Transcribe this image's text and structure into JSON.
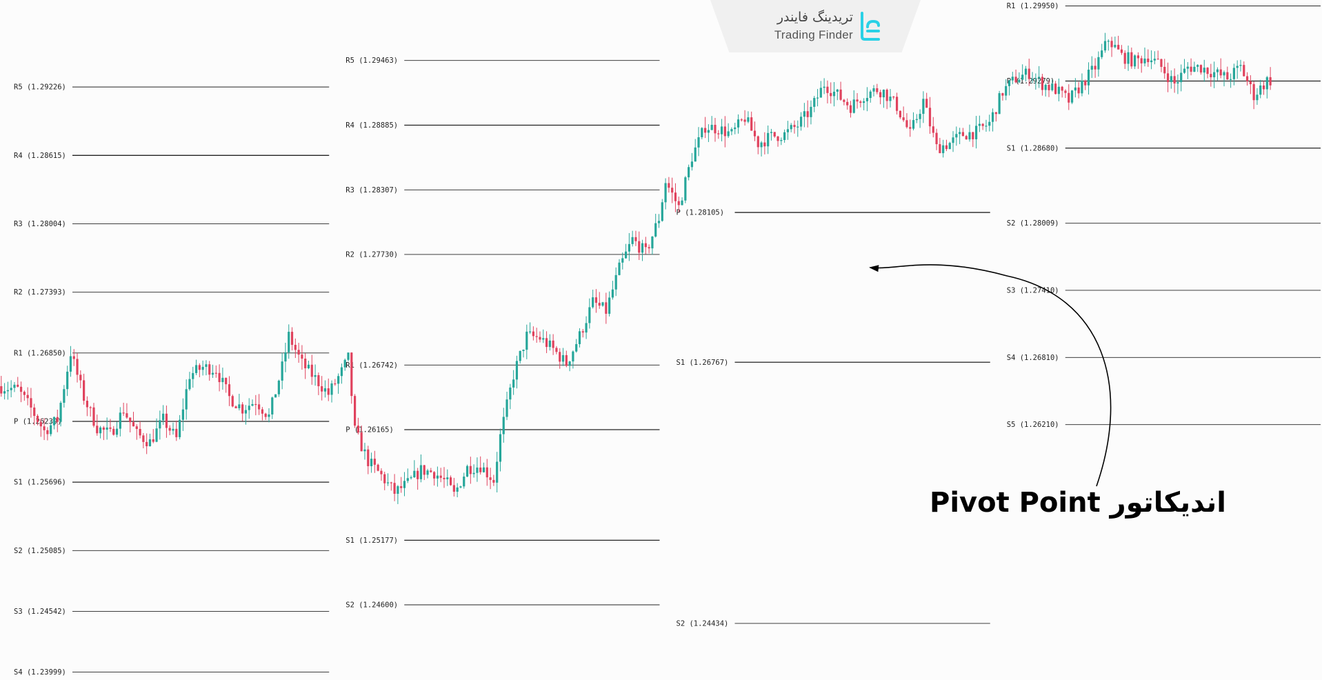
{
  "brand": {
    "name_fa": "تریدینگ فایندر",
    "name_en": "Trading Finder"
  },
  "annotation": {
    "text": "اندیکاتور Pivot Point"
  },
  "colors": {
    "bull": "#26a69a",
    "bear": "#e0425d",
    "level_line": "#222222",
    "arrow": "#000000"
  },
  "chart_data": {
    "type": "candlestick",
    "panes": [
      {
        "x_range": [
          0,
          100
        ],
        "levels": [
          {
            "name": "R5",
            "value": 1.29226,
            "label": "R5 (1.29226)"
          },
          {
            "name": "R4",
            "value": 1.28615,
            "label": "R4 (1.28615)"
          },
          {
            "name": "R3",
            "value": 1.28004,
            "label": "R3 (1.28004)"
          },
          {
            "name": "R2",
            "value": 1.27393,
            "label": "R2 (1.27393)"
          },
          {
            "name": "R1",
            "value": 1.2685,
            "label": "R1 (1.26850)"
          },
          {
            "name": "P",
            "value": 1.26239,
            "label": "P (1.26239)"
          },
          {
            "name": "S1",
            "value": 1.25696,
            "label": "S1 (1.25696)"
          },
          {
            "name": "S2",
            "value": 1.25085,
            "label": "S2 (1.25085)"
          },
          {
            "name": "S3",
            "value": 1.24542,
            "label": "S3 (1.24542)"
          },
          {
            "name": "S4",
            "value": 1.23999,
            "label": "S4 (1.23999)"
          }
        ]
      },
      {
        "x_range": [
          100,
          200
        ],
        "levels": [
          {
            "name": "R5",
            "value": 1.29463,
            "label": "R5 (1.29463)"
          },
          {
            "name": "R4",
            "value": 1.28885,
            "label": "R4 (1.28885)"
          },
          {
            "name": "R3",
            "value": 1.28307,
            "label": "R3 (1.28307)"
          },
          {
            "name": "R2",
            "value": 1.2773,
            "label": "R2 (1.27730)"
          },
          {
            "name": "R1",
            "value": 1.26742,
            "label": "R1 (1.26742)"
          },
          {
            "name": "P",
            "value": 1.26165,
            "label": "P (1.26165)"
          },
          {
            "name": "S1",
            "value": 1.25177,
            "label": "S1 (1.25177)"
          },
          {
            "name": "S2",
            "value": 1.246,
            "label": "S2 (1.24600)"
          }
        ]
      },
      {
        "x_range": [
          200,
          300
        ],
        "levels": [
          {
            "name": "P",
            "value": 1.28105,
            "label": "P (1.28105)"
          },
          {
            "name": "S1",
            "value": 1.26767,
            "label": "S1 (1.26767)"
          },
          {
            "name": "S2",
            "value": 1.24434,
            "label": "S2 (1.24434)"
          }
        ]
      },
      {
        "x_range": [
          300,
          400
        ],
        "levels": [
          {
            "name": "R1",
            "value": 1.2995,
            "label": "R1 (1.29950)"
          },
          {
            "name": "P",
            "value": 1.29279,
            "label": "P (1.29279)"
          },
          {
            "name": "S1",
            "value": 1.2868,
            "label": "S1 (1.28680)"
          },
          {
            "name": "S2",
            "value": 1.28009,
            "label": "S2 (1.28009)"
          },
          {
            "name": "S3",
            "value": 1.2741,
            "label": "S3 (1.27410)"
          },
          {
            "name": "S4",
            "value": 1.2681,
            "label": "S4 (1.26810)"
          },
          {
            "name": "S5",
            "value": 1.2621,
            "label": "S5 (1.26210)"
          }
        ]
      }
    ],
    "price_path": [
      [
        0,
        1.2655
      ],
      [
        6,
        1.2652
      ],
      [
        10,
        1.2635
      ],
      [
        14,
        1.2615
      ],
      [
        18,
        1.2625
      ],
      [
        22,
        1.2685
      ],
      [
        26,
        1.2645
      ],
      [
        30,
        1.2618
      ],
      [
        34,
        1.2612
      ],
      [
        38,
        1.2634
      ],
      [
        42,
        1.2612
      ],
      [
        46,
        1.2605
      ],
      [
        50,
        1.2625
      ],
      [
        54,
        1.2608
      ],
      [
        58,
        1.2665
      ],
      [
        62,
        1.2672
      ],
      [
        66,
        1.267
      ],
      [
        70,
        1.2645
      ],
      [
        74,
        1.2635
      ],
      [
        78,
        1.2642
      ],
      [
        82,
        1.2628
      ],
      [
        86,
        1.2672
      ],
      [
        88,
        1.27
      ],
      [
        92,
        1.2675
      ],
      [
        96,
        1.2662
      ],
      [
        100,
        1.2648
      ],
      [
        104,
        1.2668
      ],
      [
        106,
        1.268
      ],
      [
        108,
        1.2615
      ],
      [
        112,
        1.2588
      ],
      [
        116,
        1.2575
      ],
      [
        120,
        1.256
      ],
      [
        124,
        1.2568
      ],
      [
        128,
        1.258
      ],
      [
        132,
        1.2578
      ],
      [
        136,
        1.2568
      ],
      [
        138,
        1.2558
      ],
      [
        142,
        1.2582
      ],
      [
        146,
        1.2584
      ],
      [
        150,
        1.2571
      ],
      [
        152,
        1.261
      ],
      [
        156,
        1.2665
      ],
      [
        160,
        1.27
      ],
      [
        164,
        1.2698
      ],
      [
        168,
        1.2688
      ],
      [
        172,
        1.2675
      ],
      [
        176,
        1.27
      ],
      [
        180,
        1.273
      ],
      [
        184,
        1.2722
      ],
      [
        188,
        1.276
      ],
      [
        192,
        1.2786
      ],
      [
        196,
        1.2774
      ],
      [
        200,
        1.2805
      ],
      [
        202,
        1.2838
      ],
      [
        206,
        1.2815
      ],
      [
        210,
        1.286
      ],
      [
        214,
        1.2887
      ],
      [
        218,
        1.2885
      ],
      [
        222,
        1.288
      ],
      [
        226,
        1.2895
      ],
      [
        230,
        1.2872
      ],
      [
        234,
        1.2878
      ],
      [
        238,
        1.288
      ],
      [
        242,
        1.2888
      ],
      [
        246,
        1.2902
      ],
      [
        250,
        1.2925
      ],
      [
        254,
        1.2915
      ],
      [
        258,
        1.2905
      ],
      [
        262,
        1.2915
      ],
      [
        266,
        1.292
      ],
      [
        268,
        1.2918
      ],
      [
        272,
        1.2905
      ],
      [
        276,
        1.288
      ],
      [
        280,
        1.291
      ],
      [
        284,
        1.2868
      ],
      [
        288,
        1.2872
      ],
      [
        292,
        1.288
      ],
      [
        296,
        1.2882
      ],
      [
        300,
        1.289
      ],
      [
        304,
        1.2918
      ],
      [
        308,
        1.293
      ],
      [
        312,
        1.2935
      ],
      [
        316,
        1.2925
      ],
      [
        320,
        1.292
      ],
      [
        324,
        1.291
      ],
      [
        328,
        1.2925
      ],
      [
        332,
        1.294
      ],
      [
        336,
        1.2965
      ],
      [
        340,
        1.295
      ],
      [
        344,
        1.2945
      ],
      [
        348,
        1.295
      ],
      [
        352,
        1.294
      ],
      [
        356,
        1.2925
      ],
      [
        360,
        1.294
      ],
      [
        364,
        1.294
      ],
      [
        368,
        1.2935
      ],
      [
        372,
        1.293
      ],
      [
        376,
        1.294
      ],
      [
        380,
        1.2915
      ],
      [
        384,
        1.2928
      ]
    ],
    "ylim": [
      1.2395,
      1.3
    ],
    "xlim": [
      0,
      400
    ]
  }
}
